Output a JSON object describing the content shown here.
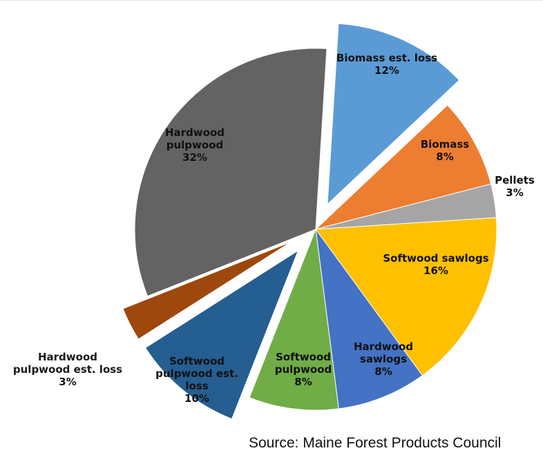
{
  "chart_data": {
    "type": "pie",
    "title": "",
    "slices": [
      {
        "label": "Biomass est. loss",
        "lines": [
          "Biomass est. loss",
          "12%"
        ],
        "value": 12,
        "color": "#5B9BD5",
        "exploded": true
      },
      {
        "label": "Biomass",
        "lines": [
          "Biomass",
          "8%"
        ],
        "value": 8,
        "color": "#ED7D31",
        "exploded": false
      },
      {
        "label": "Pellets",
        "lines": [
          "Pellets",
          "3%"
        ],
        "value": 3,
        "color": "#A5A5A5",
        "exploded": false
      },
      {
        "label": "Softwood sawlogs",
        "lines": [
          "Softwood sawlogs",
          "16%"
        ],
        "value": 16,
        "color": "#FFC000",
        "exploded": false
      },
      {
        "label": "Hardwood sawlogs",
        "lines": [
          "Hardwood",
          "sawlogs",
          "8%"
        ],
        "value": 8,
        "color": "#4472C4",
        "exploded": false
      },
      {
        "label": "Softwood pulpwood",
        "lines": [
          "Softwood",
          "pulpwood",
          "8%"
        ],
        "value": 8,
        "color": "#70AD47",
        "exploded": false
      },
      {
        "label": "Softwood pulpwood est. loss",
        "lines": [
          "Softwood",
          "pulpwood est.",
          "loss",
          "10%"
        ],
        "value": 10,
        "color": "#255E91",
        "exploded": true
      },
      {
        "label": "Hardwood pulpwood est. loss",
        "lines": [
          "Hardwood",
          "pulpwood est. loss",
          "3%"
        ],
        "value": 3,
        "color": "#9E480E",
        "exploded": true
      },
      {
        "label": "Hardwood pulpwood",
        "lines": [
          "Hardwood",
          "pulpwood",
          "32%"
        ],
        "value": 32,
        "color": "#636363",
        "exploded": false
      }
    ]
  },
  "source_text": "Source: Maine Forest Products Council"
}
